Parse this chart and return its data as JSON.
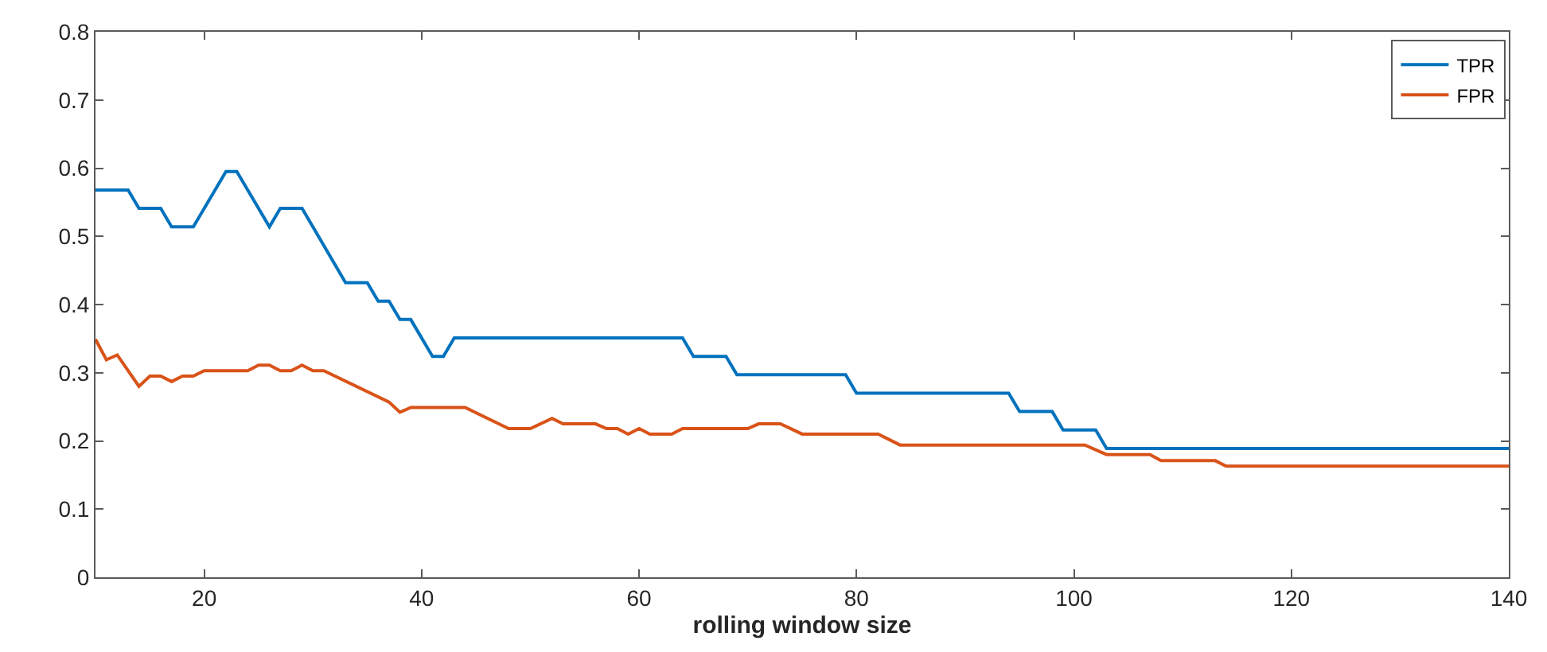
{
  "chart_data": {
    "type": "line",
    "xlabel": "rolling window size",
    "xlim": [
      10,
      140
    ],
    "xticks": [
      20,
      40,
      60,
      80,
      100,
      120,
      140
    ],
    "ylim": [
      0,
      0.8
    ],
    "yticks": [
      0,
      0.1,
      0.2,
      0.3,
      0.4,
      0.5,
      0.6,
      0.7,
      0.8
    ],
    "legend": "top right",
    "marker": "none",
    "line_style": "solid",
    "series": [
      {
        "name": "TPR",
        "color": "#0072bd",
        "x": [
          10,
          13,
          14,
          16,
          17,
          19,
          22,
          23,
          26,
          27,
          29,
          33,
          35,
          36,
          37,
          38,
          39,
          41,
          42,
          43,
          64,
          65,
          68,
          69,
          79,
          80,
          94,
          95,
          98,
          99,
          102,
          103,
          140
        ],
        "values": [
          0.568,
          0.568,
          0.541,
          0.541,
          0.514,
          0.514,
          0.595,
          0.595,
          0.514,
          0.541,
          0.541,
          0.432,
          0.432,
          0.405,
          0.405,
          0.378,
          0.378,
          0.324,
          0.324,
          0.351,
          0.351,
          0.324,
          0.324,
          0.297,
          0.297,
          0.27,
          0.27,
          0.243,
          0.243,
          0.216,
          0.216,
          0.189,
          0.189
        ]
      },
      {
        "name": "FPR",
        "color": "#d95319",
        "x": [
          10,
          11,
          12,
          14,
          15,
          16,
          17,
          18,
          19,
          20,
          24,
          25,
          26,
          27,
          28,
          29,
          30,
          31,
          37,
          38,
          39,
          44,
          48,
          50,
          52,
          53,
          56,
          57,
          58,
          59,
          60,
          61,
          63,
          64,
          70,
          71,
          73,
          75,
          82,
          84,
          101,
          103,
          107,
          108,
          113,
          114,
          140
        ],
        "values": [
          0.349,
          0.319,
          0.326,
          0.28,
          0.295,
          0.295,
          0.287,
          0.295,
          0.295,
          0.303,
          0.303,
          0.311,
          0.311,
          0.303,
          0.303,
          0.311,
          0.303,
          0.303,
          0.257,
          0.242,
          0.249,
          0.249,
          0.218,
          0.218,
          0.233,
          0.225,
          0.225,
          0.218,
          0.218,
          0.21,
          0.218,
          0.21,
          0.21,
          0.218,
          0.218,
          0.225,
          0.225,
          0.21,
          0.21,
          0.194,
          0.194,
          0.18,
          0.18,
          0.171,
          0.171,
          0.163,
          0.163
        ]
      }
    ]
  }
}
